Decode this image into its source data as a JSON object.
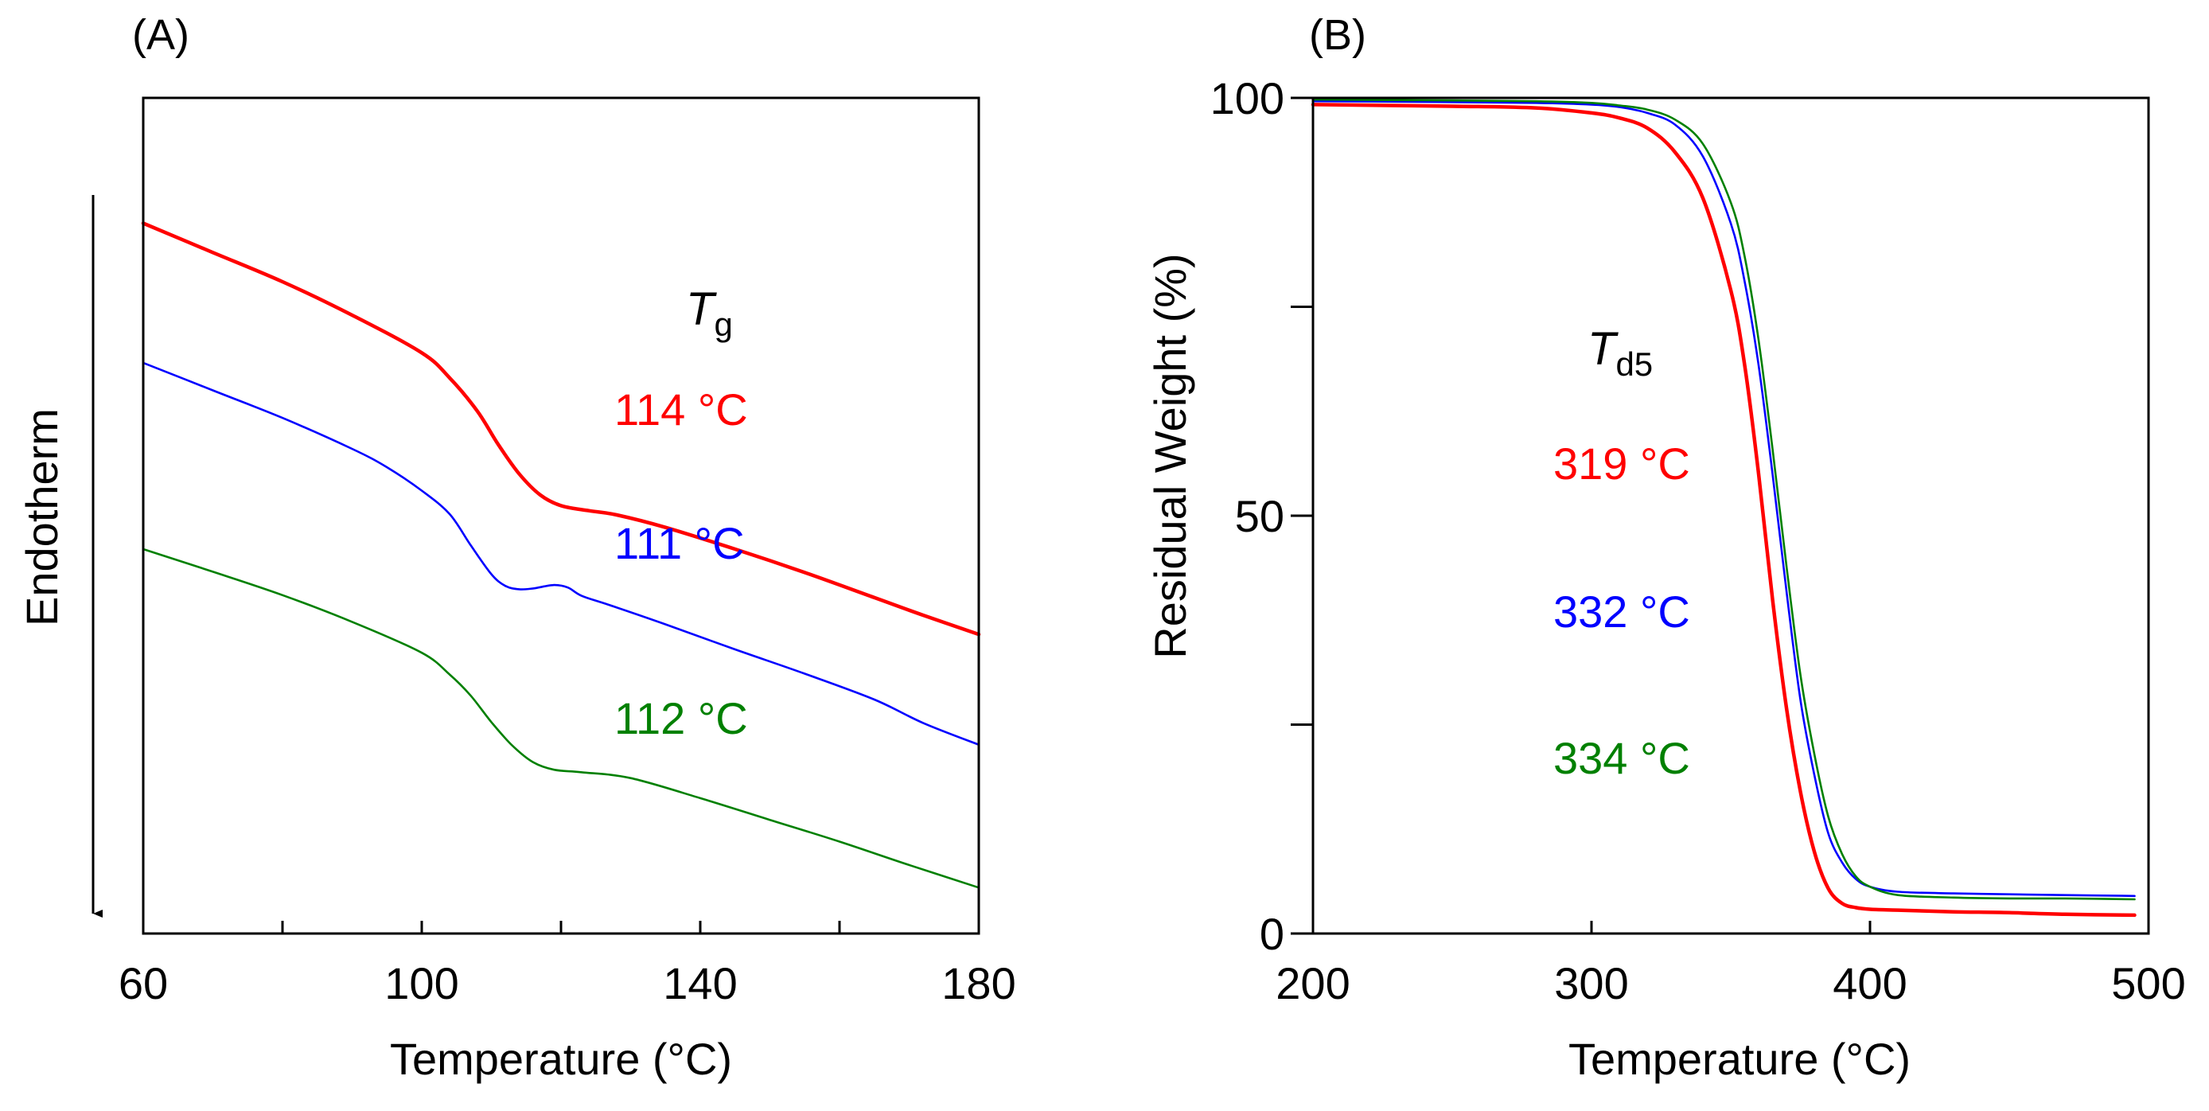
{
  "chart_data": [
    {
      "type": "line",
      "panel_label": "(A)",
      "title": "",
      "xlabel": "Temperature (°C)",
      "ylabel": "Endotherm",
      "ylabel_arrow": "down",
      "xlim": [
        60,
        180
      ],
      "ylim": [
        0,
        100
      ],
      "xticks": [
        60,
        80,
        100,
        120,
        140,
        160,
        180
      ],
      "xtick_labels": [
        "60",
        "100",
        "140",
        "180"
      ],
      "y_ticks_shown": false,
      "grid": false,
      "annotation_header": {
        "symbol": "T",
        "subscript": "g"
      },
      "series": [
        {
          "name": "114 °C",
          "color": "#ff0000",
          "x": [
            60,
            70,
            80,
            90,
            100,
            104,
            108,
            111,
            114,
            117,
            120,
            124,
            128,
            135,
            145,
            155,
            165,
            172,
            180
          ],
          "y": [
            85,
            81.5,
            78,
            74,
            69.5,
            66.5,
            62.5,
            58.5,
            55,
            52.5,
            51.2,
            50.6,
            50.1,
            48.6,
            46,
            43.2,
            40.2,
            38.1,
            35.8
          ]
        },
        {
          "name": "111 °C",
          "color": "#0000ff",
          "x": [
            60,
            70,
            80,
            90,
            95,
            100,
            104,
            107,
            110,
            112,
            114,
            116,
            119,
            121,
            123,
            127,
            135,
            145,
            155,
            165,
            172,
            180
          ],
          "y": [
            68.3,
            65,
            61.7,
            58,
            55.8,
            53,
            50.2,
            46.5,
            43,
            41.6,
            41.2,
            41.3,
            41.7,
            41.4,
            40.4,
            39.3,
            37,
            34,
            31.1,
            28,
            25.2,
            22.6
          ]
        },
        {
          "name": "112 °C",
          "color": "#008000",
          "x": [
            60,
            70,
            80,
            90,
            100,
            104,
            107,
            110,
            113,
            116,
            119,
            123,
            130,
            140,
            150,
            160,
            170,
            180
          ],
          "y": [
            46,
            43.3,
            40.5,
            37.3,
            33.6,
            31,
            28.5,
            25.3,
            22.5,
            20.5,
            19.6,
            19.3,
            18.6,
            16.2,
            13.6,
            11,
            8.2,
            5.5
          ]
        }
      ]
    },
    {
      "type": "line",
      "panel_label": "(B)",
      "title": "",
      "xlabel": "Temperature (°C)",
      "ylabel": "Residual Weight (%)",
      "xlim": [
        200,
        500
      ],
      "ylim": [
        0,
        100
      ],
      "xticks": [
        200,
        300,
        400,
        500
      ],
      "xtick_labels": [
        "200",
        "300",
        "400",
        "500"
      ],
      "yticks": [
        0,
        25,
        50,
        75,
        100
      ],
      "ytick_labels": [
        "0",
        "",
        "50",
        "",
        "100"
      ],
      "grid": false,
      "annotation_header": {
        "symbol": "T",
        "subscript": "d5"
      },
      "series": [
        {
          "name": "319 °C",
          "color": "#ff0000",
          "x": [
            200,
            250,
            280,
            300,
            310,
            320,
            330,
            340,
            350,
            355,
            360,
            365,
            370,
            375,
            380,
            385,
            390,
            395,
            400,
            410,
            430,
            450,
            470,
            495
          ],
          "y": [
            99.2,
            99,
            98.8,
            98.2,
            97.6,
            96.4,
            93.5,
            88,
            77,
            68,
            55,
            40,
            27,
            17,
            9.8,
            5.4,
            3.6,
            3.1,
            2.9,
            2.8,
            2.6,
            2.5,
            2.3,
            2.2
          ]
        },
        {
          "name": "332 °C",
          "color": "#0000ff",
          "x": [
            200,
            250,
            280,
            300,
            310,
            320,
            330,
            340,
            350,
            355,
            360,
            365,
            370,
            375,
            380,
            385,
            390,
            395,
            400,
            410,
            430,
            450,
            470,
            495
          ],
          "y": [
            99.6,
            99.5,
            99.4,
            99.2,
            98.9,
            98.2,
            96.8,
            93,
            85,
            78,
            68,
            55,
            41,
            28,
            19,
            12,
            8.5,
            6.5,
            5.6,
            5,
            4.8,
            4.7,
            4.6,
            4.5
          ]
        },
        {
          "name": "334 °C",
          "color": "#008000",
          "x": [
            200,
            250,
            280,
            300,
            310,
            320,
            330,
            340,
            350,
            355,
            360,
            365,
            370,
            375,
            380,
            385,
            390,
            395,
            400,
            410,
            430,
            450,
            470,
            495
          ],
          "y": [
            99.8,
            99.7,
            99.6,
            99.4,
            99.1,
            98.6,
            97.4,
            94.5,
            87.5,
            81,
            71,
            58,
            44,
            31,
            21.5,
            14,
            9.5,
            6.8,
            5.6,
            4.6,
            4.3,
            4.2,
            4.2,
            4.1
          ]
        }
      ]
    }
  ]
}
